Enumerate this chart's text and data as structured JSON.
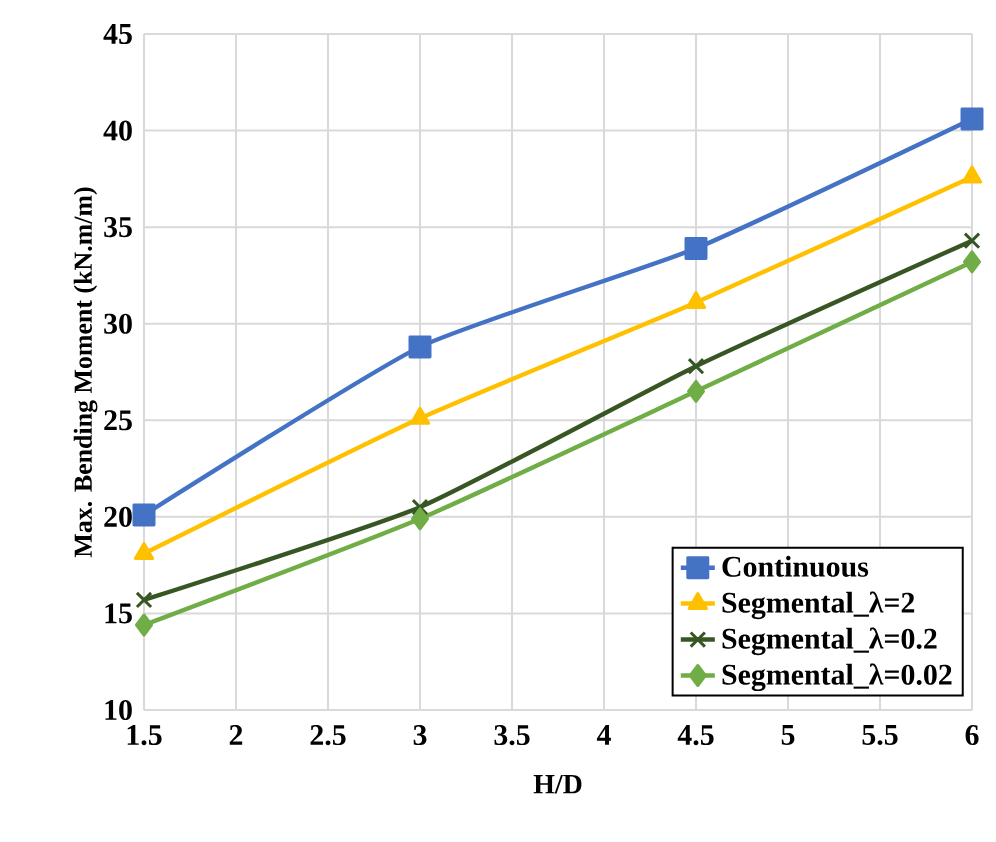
{
  "chart_data": {
    "type": "line",
    "xlabel": "H/D",
    "ylabel": "Max. Bending Moment  (kN.m/m)",
    "x": [
      1.5,
      3,
      4.5,
      6
    ],
    "series": [
      {
        "name": "Continuous",
        "color": "#4472c4",
        "marker": "square",
        "values": [
          20.1,
          28.8,
          33.9,
          40.6
        ]
      },
      {
        "name": "Segmental_λ=2",
        "color": "#ffc000",
        "marker": "triangle",
        "values": [
          18.1,
          25.1,
          31.1,
          37.6
        ]
      },
      {
        "name": "Segmental_λ=0.2",
        "color": "#375623",
        "marker": "cross",
        "values": [
          15.7,
          20.5,
          27.8,
          34.3
        ]
      },
      {
        "name": "Segmental_λ=0.02",
        "color": "#70ad47",
        "marker": "diamond",
        "values": [
          14.4,
          19.9,
          26.5,
          33.2
        ]
      }
    ],
    "xlim": [
      1.5,
      6
    ],
    "xticks": [
      1.5,
      2,
      2.5,
      3,
      3.5,
      4,
      4.5,
      5,
      5.5,
      6
    ],
    "ylim": [
      10,
      45
    ],
    "yticks": [
      10,
      15,
      20,
      25,
      30,
      35,
      40,
      45
    ],
    "grid": true,
    "legend": "bottom right",
    "line_style": "solid"
  }
}
